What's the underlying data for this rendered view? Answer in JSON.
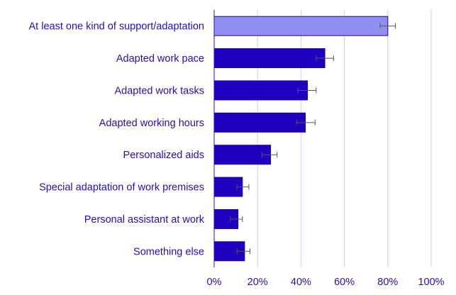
{
  "chart_data": {
    "type": "bar",
    "orientation": "horizontal",
    "categories": [
      "At least one kind of support/adaptation",
      "Adapted work pace",
      "Adapted work tasks",
      "Adapted working hours",
      "Personalized aids",
      "Special adaptation of work premises",
      "Personal assistant at work",
      "Something else"
    ],
    "values": [
      80,
      51,
      43,
      42,
      26,
      13,
      11,
      14
    ],
    "error_low": [
      76.5,
      47,
      38.5,
      38,
      22,
      10.5,
      7.5,
      10.5
    ],
    "error_high": [
      83.5,
      55,
      47,
      46.5,
      29,
      16,
      13,
      16.5
    ],
    "bar_colors": [
      "#8f8ff2",
      "#2000c0",
      "#2000c0",
      "#2000c0",
      "#2000c0",
      "#2000c0",
      "#2000c0",
      "#2000c0"
    ],
    "bar_edge_color": "#2000a0",
    "label_color": "#2010b8",
    "grid_color": "#cfcfe8",
    "errorbar_color": "#555555",
    "xlim": [
      0,
      100
    ],
    "xticks": [
      0,
      20,
      40,
      60,
      80,
      100
    ],
    "xtick_labels": [
      "0%",
      "20%",
      "40%",
      "60%",
      "80%",
      "100%"
    ],
    "grid": true
  }
}
